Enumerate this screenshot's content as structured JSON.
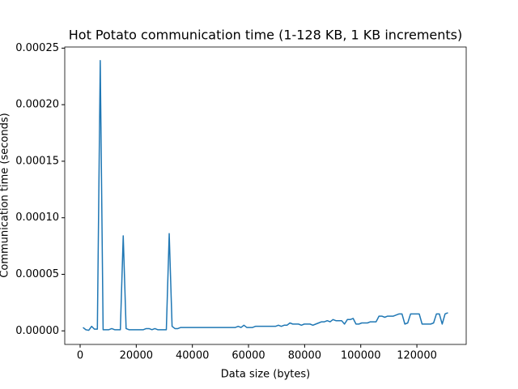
{
  "chart_data": {
    "type": "line",
    "title": "Hot Potato communication time (1-128 KB, 1 KB increments)",
    "x_label": "Data size (bytes)",
    "y_label": "Communication time (seconds)",
    "color": "#1f77b4",
    "x": [
      1024,
      2048,
      3072,
      4096,
      5120,
      6144,
      7168,
      8192,
      9216,
      10240,
      11264,
      12288,
      13312,
      14336,
      15360,
      16384,
      17408,
      18432,
      19456,
      20480,
      21504,
      22528,
      23552,
      24576,
      25600,
      26624,
      27648,
      28672,
      29696,
      30720,
      31744,
      32768,
      33792,
      34816,
      35840,
      36864,
      37888,
      38912,
      39936,
      40960,
      41984,
      43008,
      44032,
      45056,
      46080,
      47104,
      48128,
      49152,
      50176,
      51200,
      52224,
      53248,
      54272,
      55296,
      56320,
      57344,
      58368,
      59392,
      60416,
      61440,
      62464,
      63488,
      64512,
      65536,
      66560,
      67584,
      68608,
      69632,
      70656,
      71680,
      72704,
      73728,
      74752,
      75776,
      76800,
      77824,
      78848,
      79872,
      80896,
      81920,
      82944,
      83968,
      84992,
      86016,
      87040,
      88064,
      89088,
      90112,
      91136,
      92160,
      93184,
      94208,
      95232,
      96256,
      97280,
      98304,
      99328,
      100352,
      101376,
      102400,
      103424,
      104448,
      105472,
      106496,
      107520,
      108544,
      109568,
      110592,
      111616,
      112640,
      113664,
      114688,
      115712,
      116736,
      117760,
      118784,
      119808,
      120832,
      121856,
      122880,
      123904,
      124928,
      125952,
      126976,
      128000,
      129024,
      130048,
      131072
    ],
    "values": [
      3e-06,
      1e-06,
      5e-07,
      4e-06,
      1.5e-06,
      1.5e-06,
      0.000239,
      1e-06,
      1e-06,
      1e-06,
      2e-06,
      1e-06,
      1e-06,
      1e-06,
      8.4e-05,
      2e-06,
      1e-06,
      1e-06,
      1e-06,
      1e-06,
      1e-06,
      1e-06,
      2e-06,
      2e-06,
      1e-06,
      2e-06,
      1e-06,
      1e-06,
      1e-06,
      1e-06,
      8.6e-05,
      4e-06,
      2e-06,
      2e-06,
      3e-06,
      3e-06,
      3e-06,
      3e-06,
      3e-06,
      3e-06,
      3e-06,
      3e-06,
      3e-06,
      3e-06,
      3e-06,
      3e-06,
      3e-06,
      3e-06,
      3e-06,
      3e-06,
      3e-06,
      3e-06,
      3e-06,
      3e-06,
      4e-06,
      3e-06,
      5e-06,
      3e-06,
      3e-06,
      3e-06,
      4e-06,
      4e-06,
      4e-06,
      4e-06,
      4e-06,
      4e-06,
      4e-06,
      4e-06,
      5e-06,
      4e-06,
      5e-06,
      5e-06,
      7e-06,
      6e-06,
      6e-06,
      6e-06,
      5e-06,
      6e-06,
      6e-06,
      6e-06,
      5e-06,
      6e-06,
      7e-06,
      8e-06,
      8e-06,
      9e-06,
      8e-06,
      1e-05,
      9e-06,
      9e-06,
      9e-06,
      6e-06,
      1e-05,
      1e-05,
      1.1e-05,
      6e-06,
      6e-06,
      7e-06,
      7e-06,
      7e-06,
      8e-06,
      8e-06,
      8e-06,
      1.3e-05,
      1.3e-05,
      1.2e-05,
      1.3e-05,
      1.3e-05,
      1.3e-05,
      1.4e-05,
      1.5e-05,
      1.5e-05,
      6e-06,
      7e-06,
      1.5e-05,
      1.5e-05,
      1.5e-05,
      1.5e-05,
      6e-06,
      6e-06,
      6e-06,
      6e-06,
      7e-06,
      1.5e-05,
      1.5e-05,
      6e-06,
      1.5e-05,
      1.6e-05
    ],
    "xlim": [
      -5478,
      137574
    ],
    "ylim": [
      -1.2e-05,
      0.000251
    ],
    "xticks": [
      0,
      20000,
      40000,
      60000,
      80000,
      100000,
      120000
    ],
    "yticks": [
      {
        "value": 0,
        "label": "0.00000"
      },
      {
        "value": 5e-05,
        "label": "0.00005"
      },
      {
        "value": 0.0001,
        "label": "0.00010"
      },
      {
        "value": 0.00015,
        "label": "0.00015"
      },
      {
        "value": 0.0002,
        "label": "0.00020"
      },
      {
        "value": 0.00025,
        "label": "0.00025"
      }
    ]
  }
}
